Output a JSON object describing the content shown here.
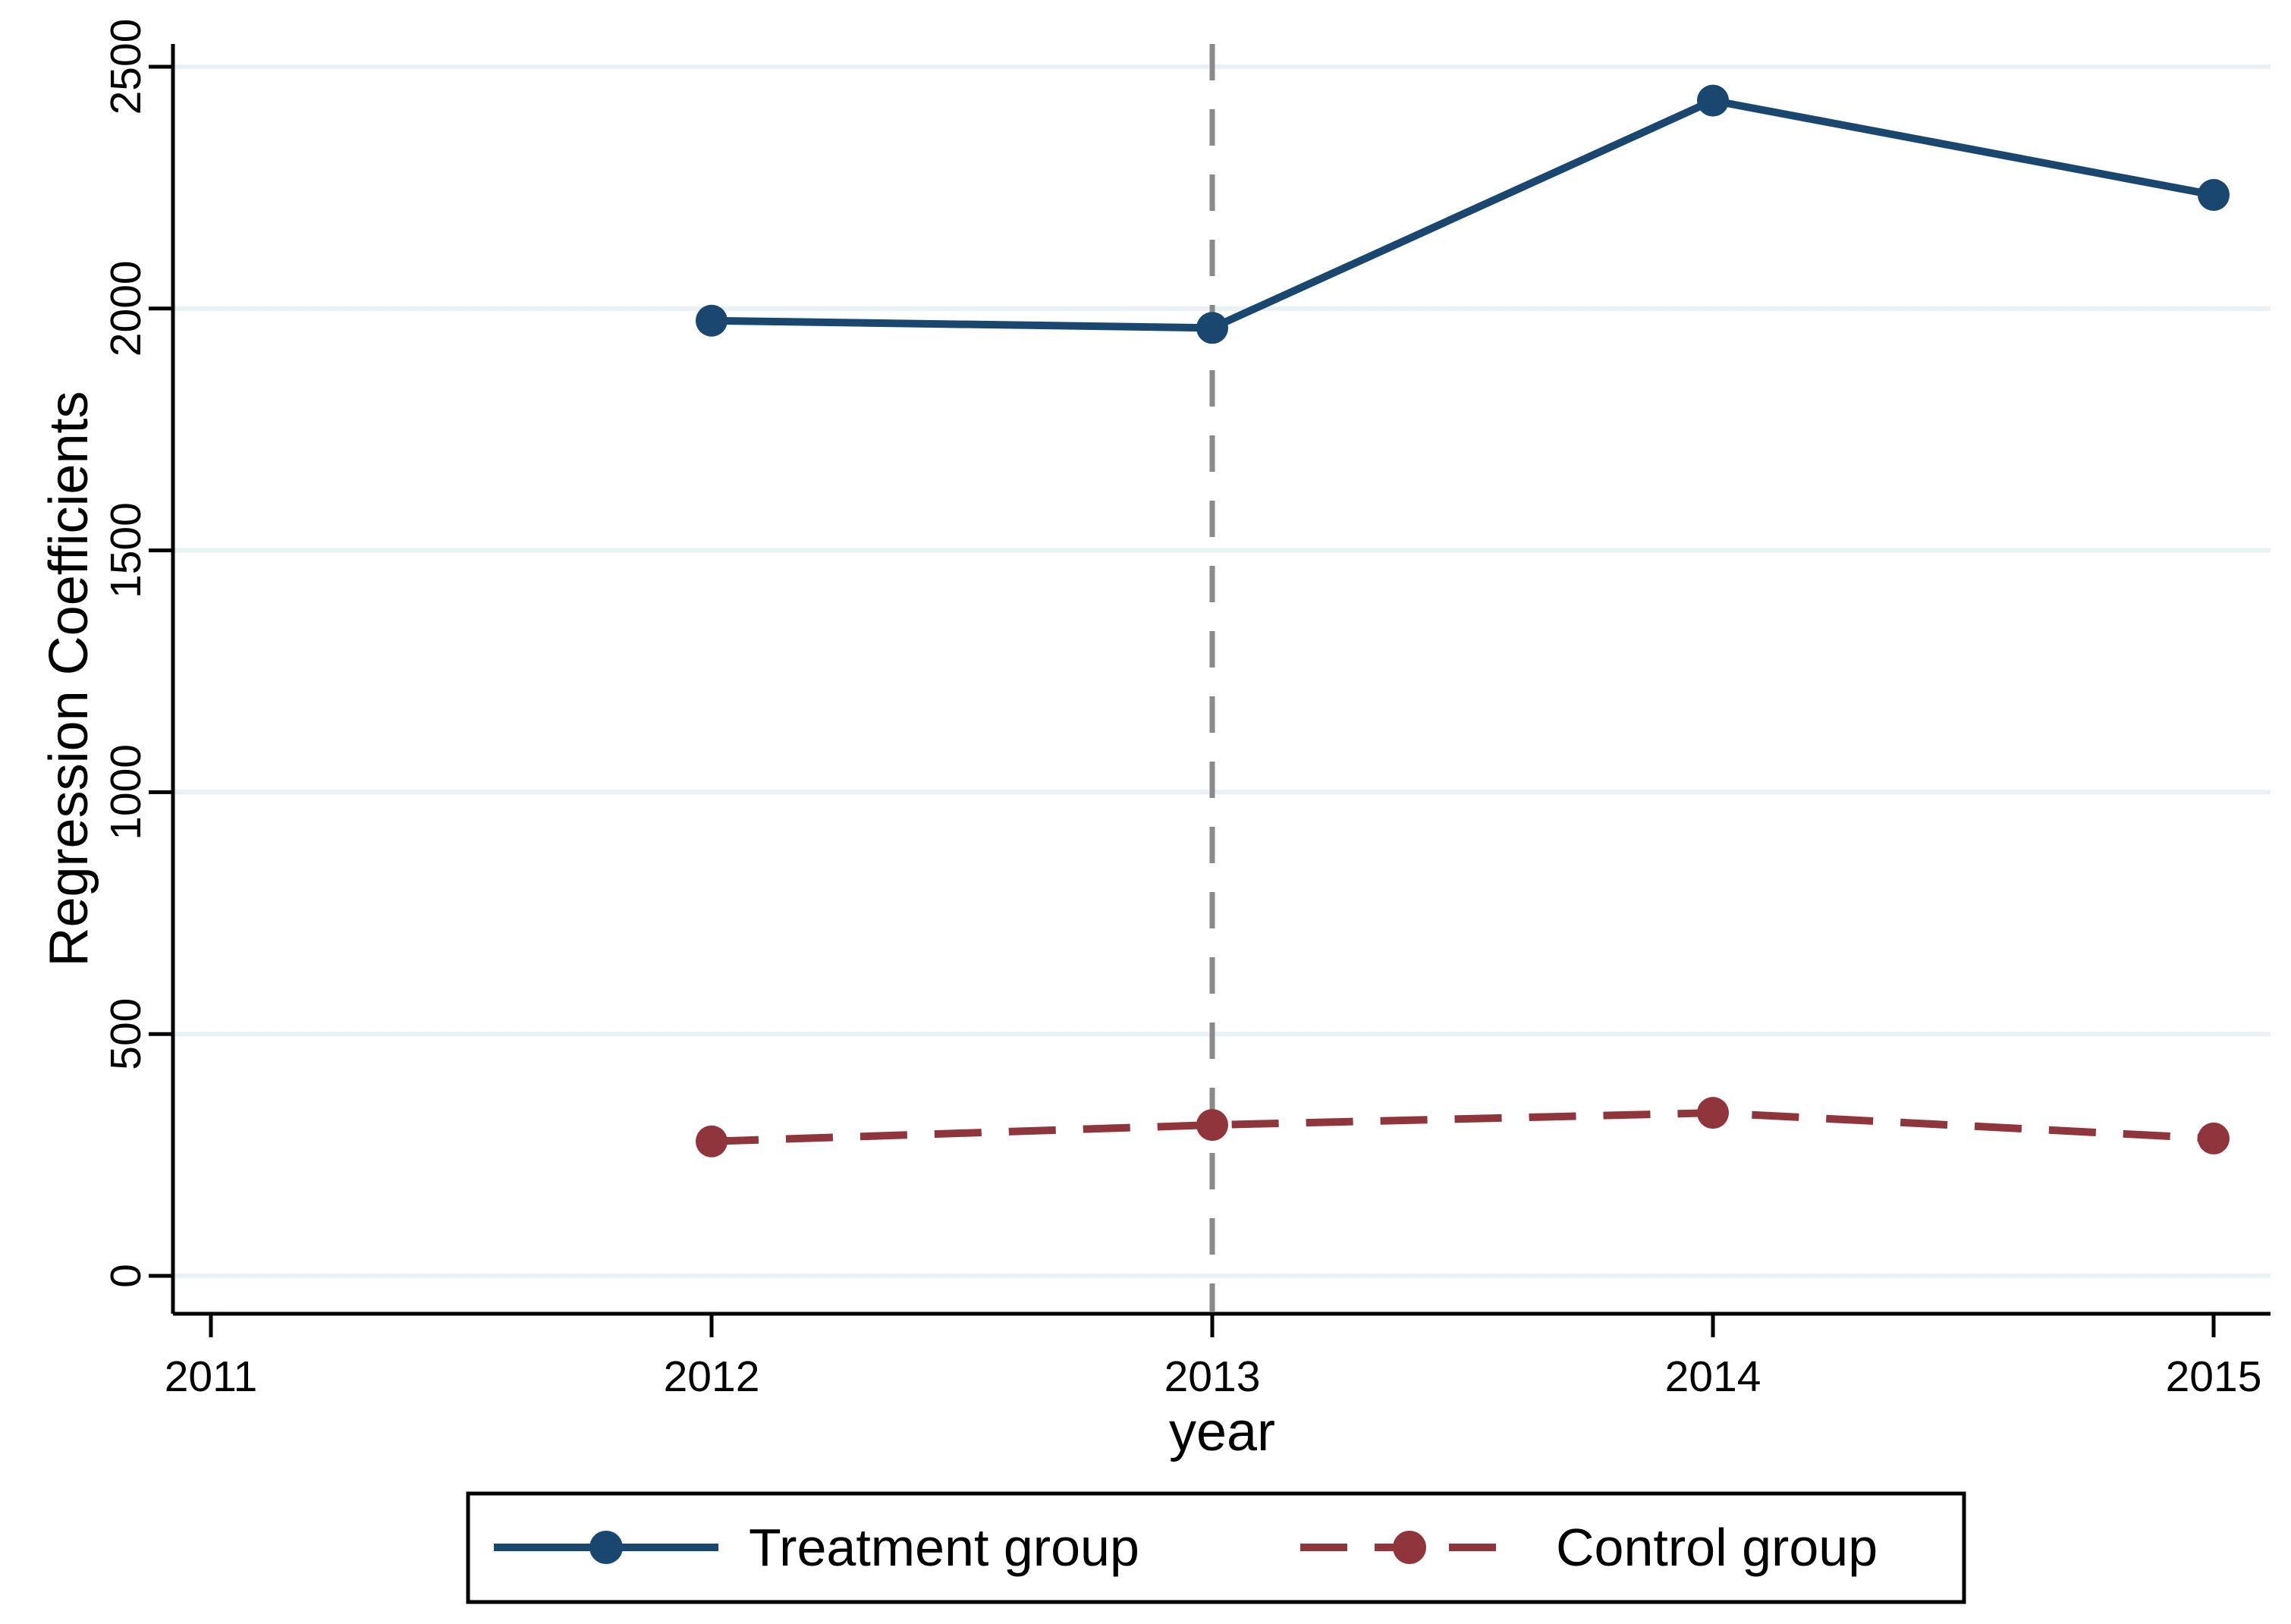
{
  "chart_data": {
    "type": "line",
    "title": "",
    "xlabel": "year",
    "ylabel": "Regression Coefficients",
    "x": [
      2012,
      2013,
      2014,
      2015
    ],
    "x_ticks": [
      2011,
      2012,
      2013,
      2014,
      2015
    ],
    "xlim": [
      2011,
      2015
    ],
    "y_ticks": [
      0,
      500,
      1000,
      1500,
      2000,
      2500
    ],
    "ylim": [
      0,
      2500
    ],
    "grid": true,
    "legend_position": "bottom",
    "reference_line": {
      "x": 2013,
      "style": "dashed",
      "color": "#8a8a8a"
    },
    "series": [
      {
        "name": "Treatment group",
        "color": "#1a476f",
        "style": "solid",
        "marker": "circle",
        "values": [
          1975,
          1960,
          2430,
          2235
        ]
      },
      {
        "name": "Control group",
        "color": "#90353b",
        "style": "dashed",
        "marker": "circle",
        "values": [
          278,
          312,
          337,
          284
        ]
      }
    ],
    "colors": {
      "grid": "#e8f1f3",
      "axis": "#000000",
      "background": "#ffffff"
    }
  }
}
